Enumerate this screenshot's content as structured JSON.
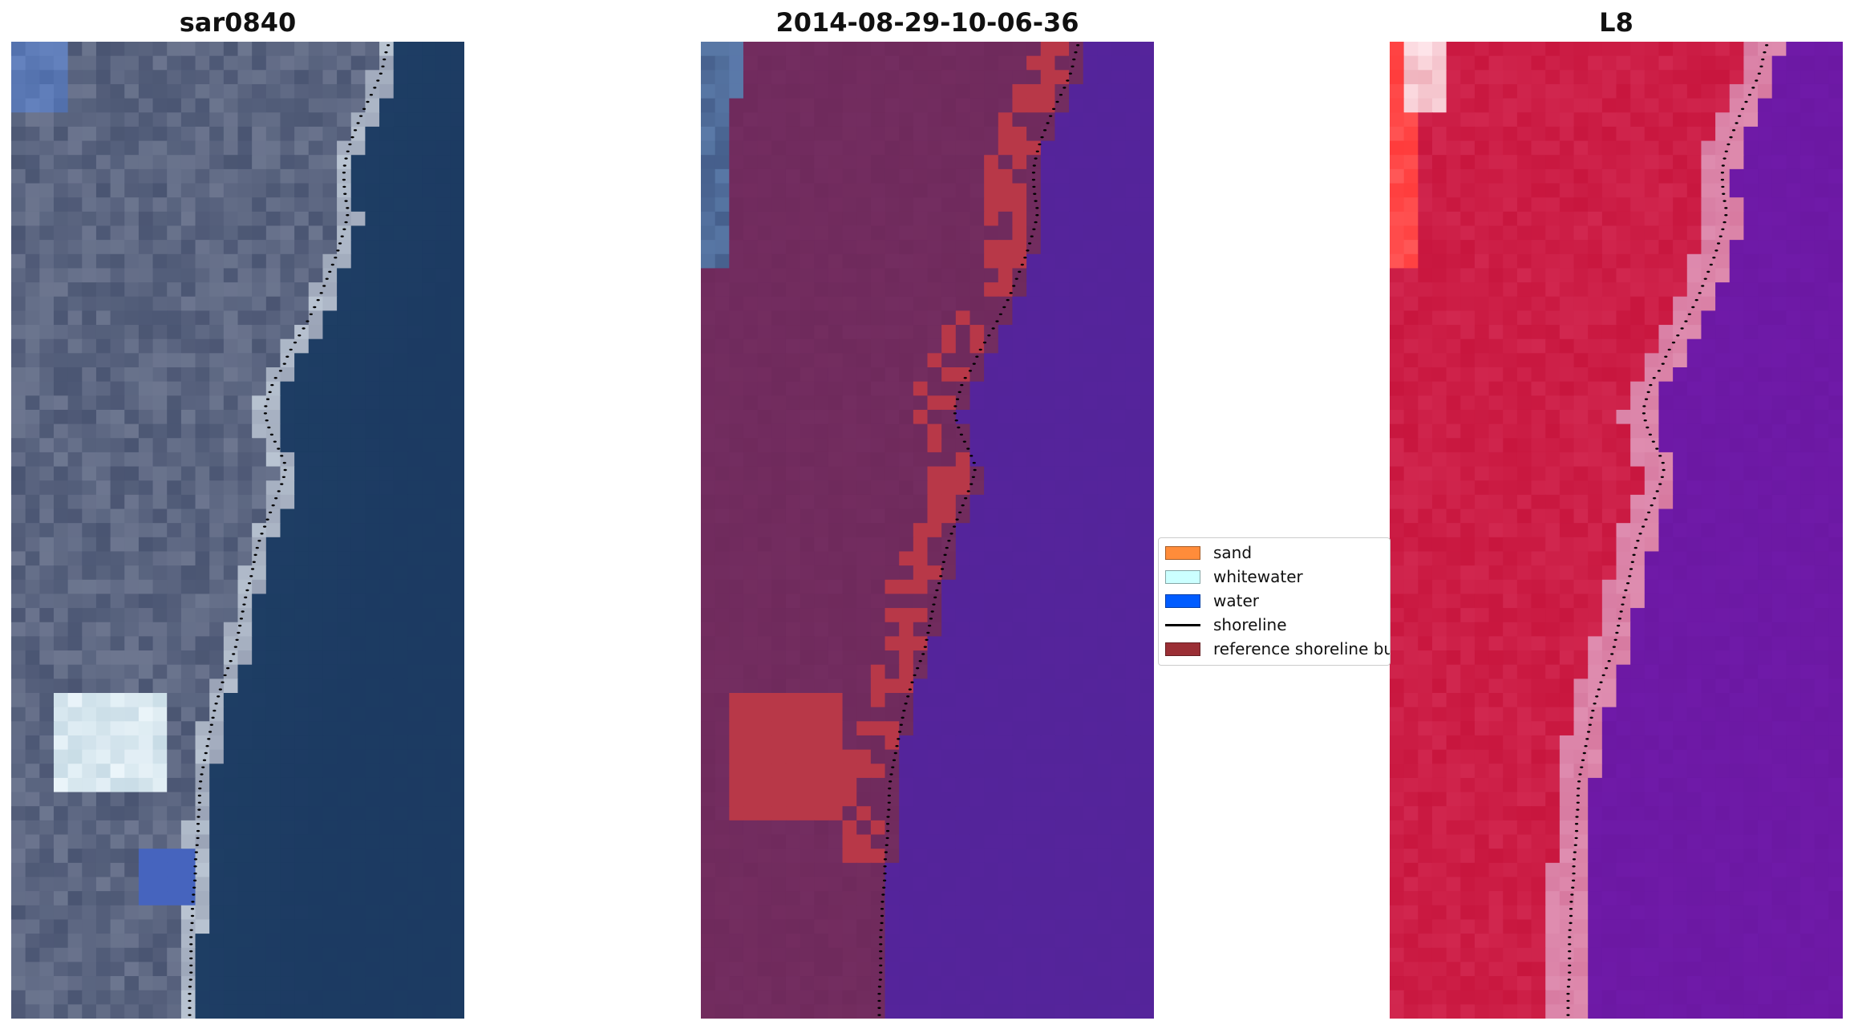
{
  "panels": [
    {
      "title": "sar0840",
      "style": "rgb",
      "colors": {
        "land": "#4a5572",
        "sea": "#1c3a62",
        "light": "#8a92a8",
        "bright": "#d9e6ee"
      }
    },
    {
      "title": "2014-08-29-10-06-36",
      "style": "classified",
      "colors": {
        "land": "#6f2a5c",
        "sea": "#54249a",
        "sand_buffer": "#b83848",
        "blue_patch": "#5a7aa8"
      }
    },
    {
      "title": "L8",
      "style": "false-color",
      "colors": {
        "land": "#c8163e",
        "sea": "#6f1aa8",
        "transition": "#d77aa0",
        "red_edge": "#ff3a3a"
      }
    }
  ],
  "legend": {
    "items": [
      {
        "label": "sand",
        "kind": "patch",
        "color": "#ff8c3a"
      },
      {
        "label": "whitewater",
        "kind": "patch",
        "color": "#ccffff"
      },
      {
        "label": "water",
        "kind": "patch",
        "color": "#005cff"
      },
      {
        "label": "shoreline",
        "kind": "line",
        "color": "#000000"
      },
      {
        "label": "reference shoreline buffer",
        "kind": "patch",
        "color": "#9b2f35"
      }
    ]
  },
  "image_grid": {
    "columns": 32,
    "rows": 69,
    "shoreline_columns": [
      26.7,
      26.4,
      26.2,
      25.8,
      25.3,
      24.8,
      24.4,
      24.0,
      23.7,
      23.5,
      23.5,
      23.6,
      23.8,
      23.6,
      23.3,
      23.0,
      22.6,
      22.2,
      21.8,
      21.3,
      20.8,
      20.2,
      19.6,
      19.2,
      18.5,
      18.2,
      17.9,
      18.1,
      18.5,
      19.0,
      19.4,
      19.2,
      18.8,
      18.4,
      18.0,
      17.6,
      17.3,
      17.1,
      16.9,
      16.6,
      16.4,
      16.2,
      16.0,
      15.8,
      15.4,
      15.0,
      14.7,
      14.4,
      14.2,
      14.0,
      13.8,
      13.6,
      13.4,
      13.3,
      13.3,
      13.2,
      13.2,
      13.1,
      13.0,
      13.0,
      12.9,
      12.8,
      12.8,
      12.7,
      12.7,
      12.7,
      12.7,
      12.6,
      12.6
    ]
  }
}
